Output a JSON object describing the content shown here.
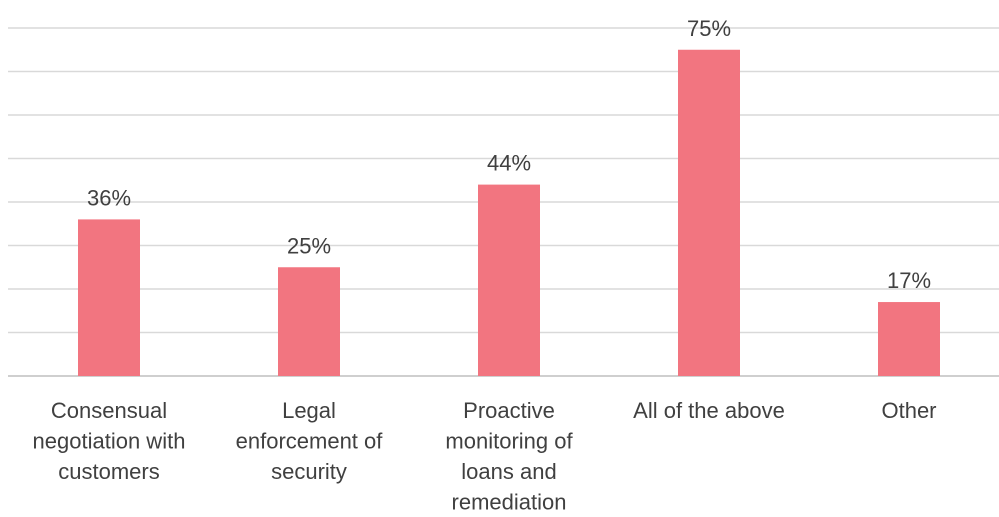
{
  "chart_data": {
    "type": "bar",
    "categories": [
      [
        "Consensual",
        "negotiation with",
        "customers"
      ],
      [
        "Legal",
        "enforcement of",
        "security"
      ],
      [
        "Proactive",
        "monitoring of",
        "loans and",
        "remediation"
      ],
      [
        "All of the above"
      ],
      [
        "Other"
      ]
    ],
    "values": [
      36,
      25,
      44,
      75,
      17
    ],
    "data_labels": [
      "36%",
      "25%",
      "44%",
      "75%",
      "17%"
    ],
    "title": "",
    "xlabel": "",
    "ylabel": "",
    "ylim": [
      0,
      80
    ],
    "y_tick_step": 10,
    "grid": true,
    "legend": "none",
    "bar_color": "#f27580",
    "grid_color": "#d9d9d9",
    "text_color": "#404040"
  }
}
